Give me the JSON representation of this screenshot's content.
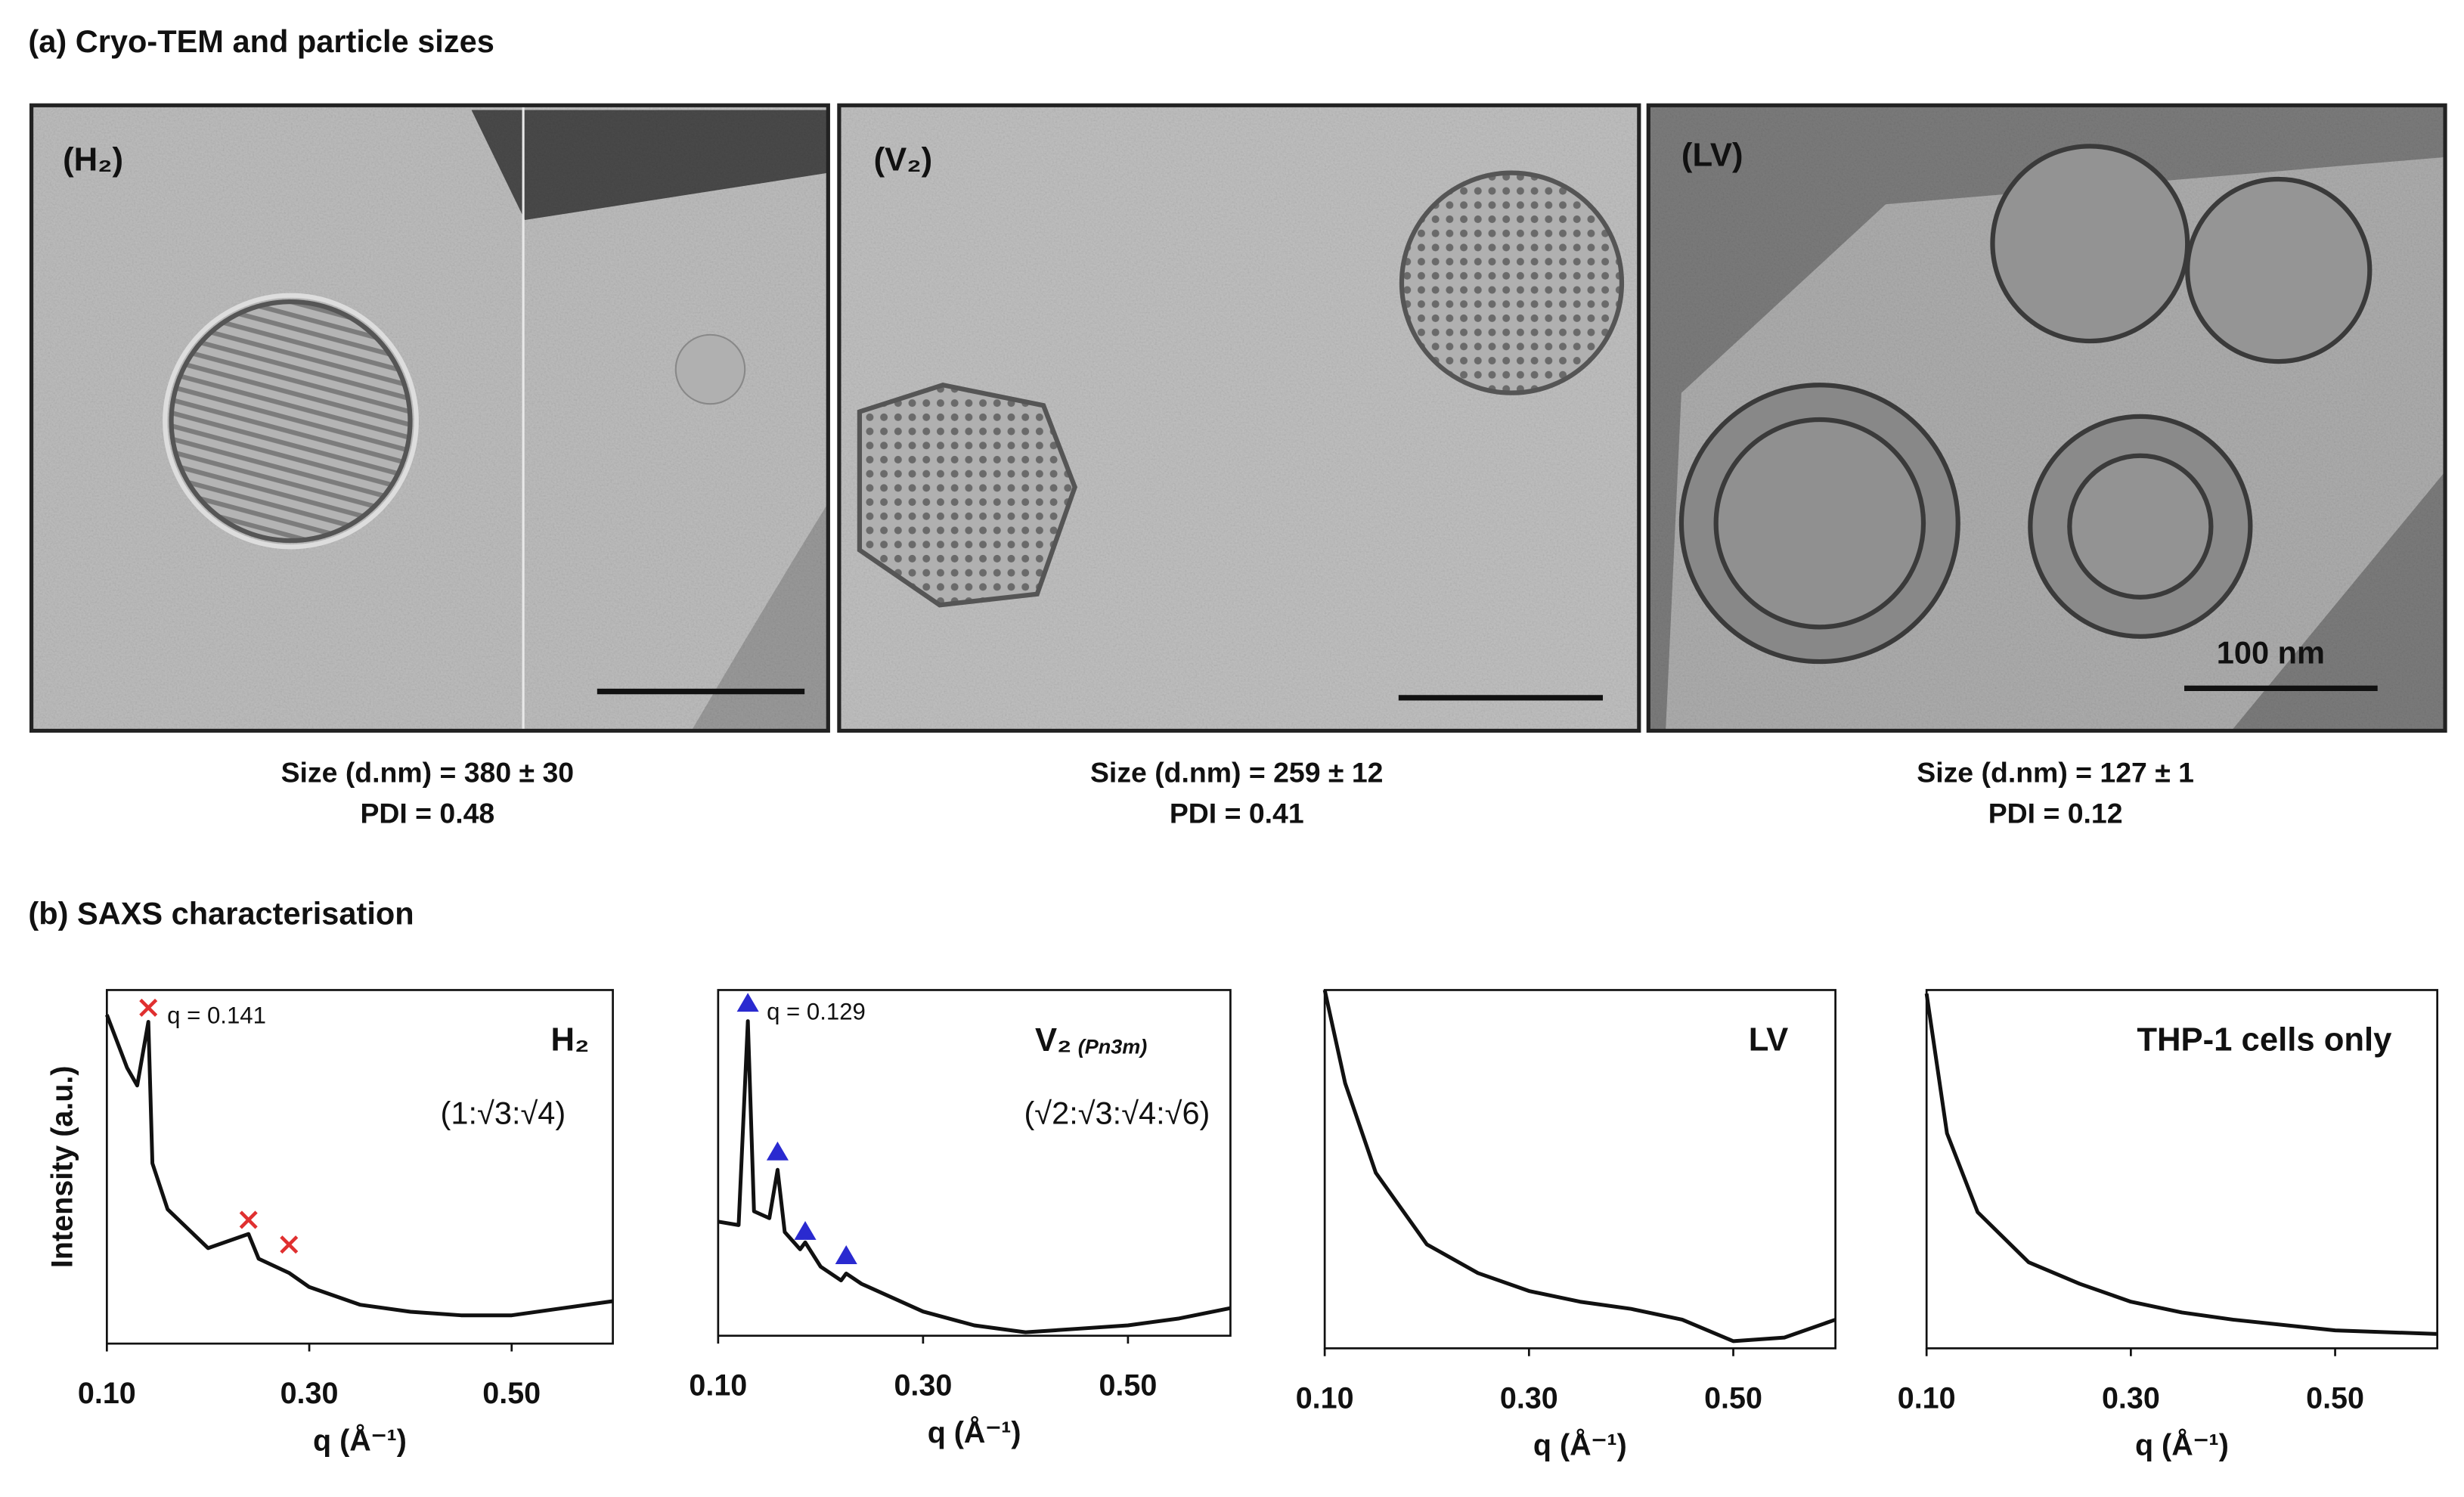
{
  "panel_a": {
    "title": "(a) Cryo-TEM and particle sizes",
    "scale_bar": "100 nm",
    "images": [
      {
        "label": "(H₂)",
        "size": "Size (d.nm) = 380 ± 30",
        "pdi": "PDI = 0.48"
      },
      {
        "label": "(V₂)",
        "size": "Size (d.nm) = 259 ± 12",
        "pdi": "PDI = 0.41"
      },
      {
        "label": "(LV)",
        "size": "Size (d.nm) = 127 ± 1",
        "pdi": "PDI = 0.12"
      }
    ]
  },
  "panel_b": {
    "title": "(b) SAXS characterisation"
  },
  "chart_data": [
    {
      "type": "line",
      "label": "H₂",
      "ratio": "(1:√3:√4)",
      "annotation": "q = 0.141",
      "ylabel": "Intensity (a.u.)",
      "xlabel": "q (Å⁻¹)",
      "color": "#111111",
      "x": [
        0.1,
        0.12,
        0.13,
        0.141,
        0.145,
        0.16,
        0.2,
        0.24,
        0.25,
        0.28,
        0.3,
        0.35,
        0.4,
        0.45,
        0.5,
        0.55,
        0.6
      ],
      "values": [
        93,
        78,
        73,
        91,
        51,
        38,
        27,
        31,
        24,
        20,
        16,
        11,
        9,
        8,
        8,
        10,
        12
      ],
      "markers": {
        "shape": "x",
        "color": "#e03030",
        "x": [
          0.141,
          0.24,
          0.28
        ],
        "values": [
          95,
          35,
          28
        ]
      },
      "xlim": [
        0.1,
        0.6
      ],
      "ylim": [
        0,
        100
      ],
      "xticks": [
        {
          "value": 0.1,
          "label": "0.10"
        },
        {
          "value": 0.3,
          "label": "0.30"
        },
        {
          "value": 0.5,
          "label": "0.50"
        }
      ]
    },
    {
      "type": "line",
      "label": "V₂",
      "label_sub": "(Pn3m)",
      "ratio": "(√2:√3:√4:√6)",
      "annotation": "q = 0.129",
      "xlabel": "q (Å⁻¹)",
      "color": "#111111",
      "x": [
        0.1,
        0.12,
        0.129,
        0.135,
        0.15,
        0.158,
        0.165,
        0.18,
        0.185,
        0.2,
        0.22,
        0.225,
        0.24,
        0.3,
        0.35,
        0.4,
        0.45,
        0.5,
        0.55,
        0.6
      ],
      "values": [
        33,
        32,
        91,
        36,
        34,
        48,
        30,
        25,
        27,
        20,
        16,
        18,
        15,
        7,
        3,
        1,
        2,
        3,
        5,
        8
      ],
      "markers": {
        "shape": "triangle",
        "color": "#2a2ad0",
        "x": [
          0.129,
          0.158,
          0.185,
          0.225
        ],
        "values": [
          96,
          53,
          30,
          23
        ]
      },
      "xlim": [
        0.1,
        0.6
      ],
      "ylim": [
        0,
        100
      ],
      "xticks": [
        {
          "value": 0.1,
          "label": "0.10"
        },
        {
          "value": 0.3,
          "label": "0.30"
        },
        {
          "value": 0.5,
          "label": "0.50"
        }
      ]
    },
    {
      "type": "line",
      "label": "LV",
      "xlabel": "q (Å⁻¹)",
      "color": "#111111",
      "x": [
        0.1,
        0.12,
        0.15,
        0.2,
        0.25,
        0.3,
        0.35,
        0.4,
        0.45,
        0.5,
        0.55,
        0.6
      ],
      "values": [
        100,
        74,
        49,
        29,
        21,
        16,
        13,
        11,
        8,
        2,
        3,
        8
      ],
      "xlim": [
        0.1,
        0.6
      ],
      "ylim": [
        0,
        100
      ],
      "xticks": [
        {
          "value": 0.1,
          "label": "0.10"
        },
        {
          "value": 0.3,
          "label": "0.30"
        },
        {
          "value": 0.5,
          "label": "0.50"
        }
      ]
    },
    {
      "type": "line",
      "label": "THP-1 cells only",
      "xlabel": "q (Å⁻¹)",
      "color": "#111111",
      "x": [
        0.1,
        0.12,
        0.15,
        0.2,
        0.25,
        0.3,
        0.35,
        0.4,
        0.5,
        0.6
      ],
      "values": [
        99,
        60,
        38,
        24,
        18,
        13,
        10,
        8,
        5,
        4
      ],
      "xlim": [
        0.1,
        0.6
      ],
      "ylim": [
        0,
        100
      ],
      "xticks": [
        {
          "value": 0.1,
          "label": "0.10"
        },
        {
          "value": 0.3,
          "label": "0.30"
        },
        {
          "value": 0.5,
          "label": "0.50"
        }
      ]
    }
  ]
}
